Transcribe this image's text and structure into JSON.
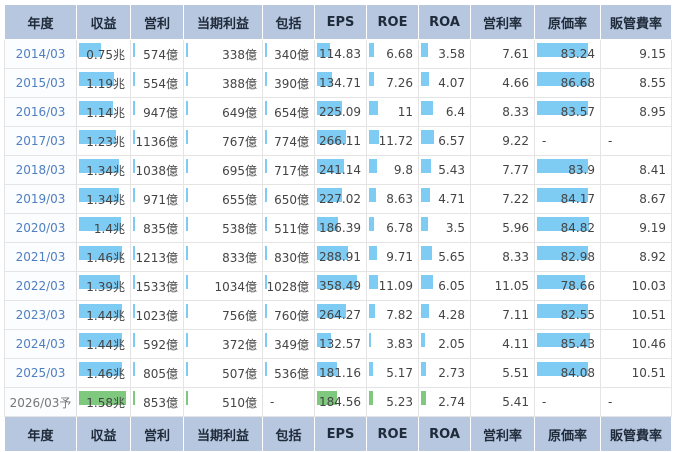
{
  "columns": [
    "年度",
    "収益",
    "営利",
    "当期利益",
    "包括",
    "EPS",
    "ROE",
    "ROA",
    "営利率",
    "原価率",
    "販管費率"
  ],
  "rows": [
    {
      "year": "2014/03",
      "cells": [
        "0.75兆",
        "574億",
        "338億",
        "340億",
        "114.83",
        "6.68",
        "3.58",
        "7.61",
        "83.24",
        "9.15"
      ],
      "bars": [
        0.47,
        0.02,
        0.02,
        0.02,
        0.29,
        0.1,
        0.15,
        null,
        0.86,
        null
      ]
    },
    {
      "year": "2015/03",
      "cells": [
        "1.19兆",
        "554億",
        "388億",
        "390億",
        "134.71",
        "7.26",
        "4.07",
        "4.66",
        "86.68",
        "8.55"
      ],
      "bars": [
        0.75,
        0.02,
        0.02,
        0.02,
        0.33,
        0.12,
        0.18,
        null,
        0.9,
        null
      ]
    },
    {
      "year": "2016/03",
      "cells": [
        "1.14兆",
        "947億",
        "649億",
        "654億",
        "225.09",
        "11",
        "6.4",
        "8.33",
        "83.57",
        "8.95"
      ],
      "bars": [
        0.72,
        0.02,
        0.02,
        0.02,
        0.55,
        0.2,
        0.27,
        null,
        0.87,
        null
      ]
    },
    {
      "year": "2017/03",
      "cells": [
        "1.23兆",
        "1136億",
        "767億",
        "774億",
        "266.11",
        "11.72",
        "6.57",
        "9.22",
        "-",
        "-"
      ],
      "bars": [
        0.78,
        0.02,
        0.02,
        0.02,
        0.65,
        0.22,
        0.28,
        null,
        null,
        null
      ]
    },
    {
      "year": "2018/03",
      "cells": [
        "1.34兆",
        "1038億",
        "695億",
        "717億",
        "241.14",
        "9.8",
        "5.43",
        "7.77",
        "83.9",
        "8.41"
      ],
      "bars": [
        0.85,
        0.02,
        0.02,
        0.02,
        0.59,
        0.18,
        0.23,
        null,
        0.87,
        null
      ]
    },
    {
      "year": "2019/03",
      "cells": [
        "1.34兆",
        "971億",
        "655億",
        "650億",
        "227.02",
        "8.63",
        "4.71",
        "7.22",
        "84.17",
        "8.67"
      ],
      "bars": [
        0.85,
        0.02,
        0.02,
        0.02,
        0.55,
        0.15,
        0.2,
        null,
        0.87,
        null
      ]
    },
    {
      "year": "2020/03",
      "cells": [
        "1.4兆",
        "835億",
        "538億",
        "511億",
        "186.39",
        "6.78",
        "3.5",
        "5.96",
        "84.82",
        "9.19"
      ],
      "bars": [
        0.89,
        0.02,
        0.02,
        0.02,
        0.46,
        0.11,
        0.15,
        null,
        0.88,
        null
      ]
    },
    {
      "year": "2021/03",
      "cells": [
        "1.46兆",
        "1213億",
        "833億",
        "830億",
        "288.91",
        "9.71",
        "5.65",
        "8.33",
        "82.98",
        "8.92"
      ],
      "bars": [
        0.92,
        0.02,
        0.02,
        0.02,
        0.7,
        0.18,
        0.24,
        null,
        0.86,
        null
      ]
    },
    {
      "year": "2022/03",
      "cells": [
        "1.39兆",
        "1533億",
        "1034億",
        "1028億",
        "358.49",
        "11.09",
        "6.05",
        "11.05",
        "78.66",
        "10.03"
      ],
      "bars": [
        0.88,
        0.02,
        0.02,
        0.02,
        0.88,
        0.21,
        0.26,
        null,
        0.82,
        null
      ]
    },
    {
      "year": "2023/03",
      "cells": [
        "1.44兆",
        "1023億",
        "756億",
        "760億",
        "264.27",
        "7.82",
        "4.28",
        "7.11",
        "82.55",
        "10.51"
      ],
      "bars": [
        0.91,
        0.02,
        0.02,
        0.02,
        0.64,
        0.14,
        0.18,
        null,
        0.86,
        null
      ]
    },
    {
      "year": "2024/03",
      "cells": [
        "1.44兆",
        "592億",
        "372億",
        "349億",
        "132.57",
        "3.83",
        "2.05",
        "4.11",
        "85.43",
        "10.46"
      ],
      "bars": [
        0.91,
        0.02,
        0.02,
        0.02,
        0.32,
        0.05,
        0.09,
        null,
        0.89,
        null
      ]
    },
    {
      "year": "2025/03",
      "cells": [
        "1.46兆",
        "805億",
        "507億",
        "536億",
        "181.16",
        "5.17",
        "2.73",
        "5.51",
        "84.08",
        "10.51"
      ],
      "bars": [
        0.92,
        0.02,
        0.02,
        0.02,
        0.44,
        0.08,
        0.12,
        null,
        0.87,
        null
      ]
    },
    {
      "year": "2026/03予",
      "forecast": true,
      "cells": [
        "1.58兆",
        "853億",
        "510億",
        "-",
        "184.56",
        "5.23",
        "2.74",
        "5.41",
        "-",
        "-"
      ],
      "bars": [
        1.0,
        0.02,
        0.02,
        null,
        0.45,
        0.08,
        0.12,
        null,
        null,
        null
      ]
    }
  ],
  "colors": {
    "header_bg": "#b6c7df",
    "bar_actual": "#7ecbf3",
    "bar_forecast": "#7fc97f",
    "year_text": "#4f7fc0"
  }
}
